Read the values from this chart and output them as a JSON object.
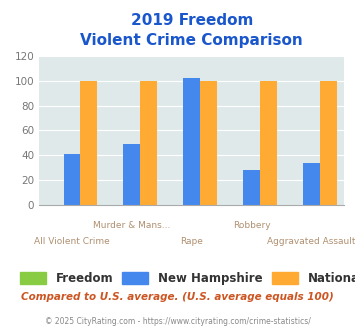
{
  "title_line1": "2019 Freedom",
  "title_line2": "Violent Crime Comparison",
  "categories": [
    "All Violent Crime",
    "Murder & Mans...",
    "Rape",
    "Robbery",
    "Aggravated Assault"
  ],
  "top_labels": [
    "",
    "Murder & Mans...",
    "",
    "Robbery",
    ""
  ],
  "bottom_labels": [
    "All Violent Crime",
    "",
    "Rape",
    "",
    "Aggravated Assault"
  ],
  "series": {
    "Freedom": [
      0,
      0,
      0,
      0,
      0
    ],
    "New Hampshire": [
      41,
      49,
      102,
      28,
      34
    ],
    "National": [
      100,
      100,
      100,
      100,
      100
    ]
  },
  "colors": {
    "Freedom": "#88cc44",
    "New Hampshire": "#4488ee",
    "National": "#ffaa33"
  },
  "ylim": [
    0,
    120
  ],
  "yticks": [
    0,
    20,
    40,
    60,
    80,
    100,
    120
  ],
  "bg_color": "#dfe9ea",
  "title_color": "#1a56cc",
  "xlabel_color": "#b09070",
  "footer_text": "Compared to U.S. average. (U.S. average equals 100)",
  "footer_color": "#cc5522",
  "credit_text": "© 2025 CityRating.com - https://www.cityrating.com/crime-statistics/",
  "credit_color": "#888888",
  "bar_width": 0.28
}
